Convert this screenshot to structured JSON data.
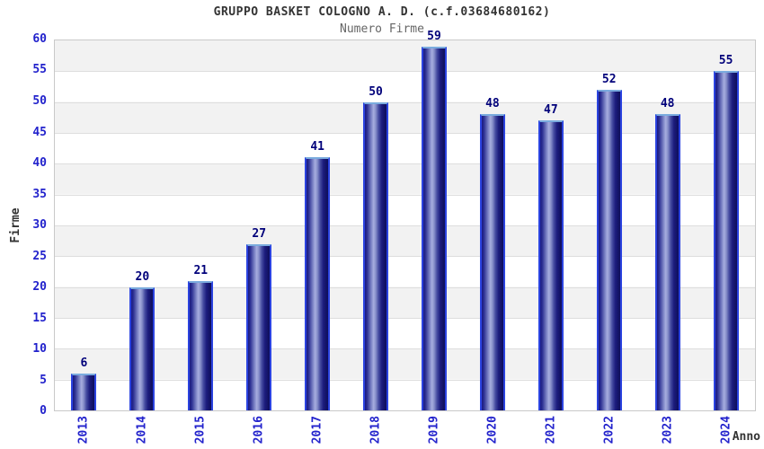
{
  "chart": {
    "title": "GRUPPO BASKET COLOGNO A. D. (c.f.03684680162)",
    "subtitle": "Numero Firme",
    "ylabel": "Firme",
    "xlabel": "Anno"
  },
  "chart_data": {
    "type": "bar",
    "categories": [
      "2013",
      "2014",
      "2015",
      "2016",
      "2017",
      "2018",
      "2019",
      "2020",
      "2021",
      "2022",
      "2023",
      "2024"
    ],
    "values": [
      6,
      20,
      21,
      27,
      41,
      50,
      59,
      48,
      47,
      52,
      48,
      55
    ],
    "title": "GRUPPO BASKET COLOGNO A. D. (c.f.03684680162)",
    "subtitle": "Numero Firme",
    "xlabel": "Anno",
    "ylabel": "Firme",
    "ylim": [
      0,
      60
    ],
    "ytick_step": 5,
    "grid": true,
    "legend_position": "none",
    "bands": "alternating-horizontal-gray-white",
    "colors": {
      "bar_side_edge": "#2b43e0",
      "bar_top_edge": "#7aabde",
      "bar_dark": "#14147a",
      "bar_highlight": "#a7addf",
      "tick_label": "#2222cc",
      "value_label": "#00007a",
      "band_gray": "#f2f2f2",
      "gridline": "#dedede",
      "plot_border": "#c9c9c9",
      "title": "#333333",
      "subtitle": "#666666",
      "axis_title": "#333333",
      "background": "#ffffff"
    }
  }
}
